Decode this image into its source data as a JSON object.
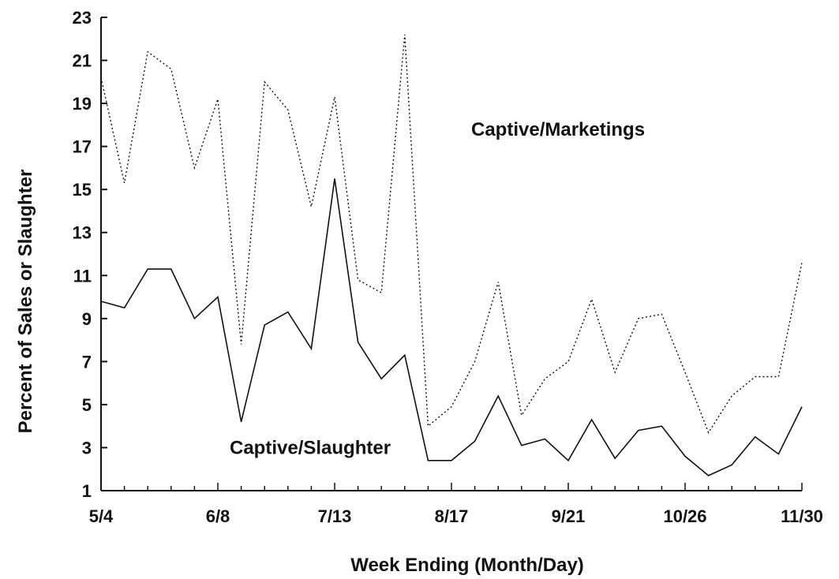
{
  "chart_data": {
    "type": "line",
    "title": "",
    "xlabel": "Week Ending (Month/Day)",
    "ylabel": "Percent of Sales or Slaughter",
    "ylim": [
      1,
      23
    ],
    "yticks": [
      "1",
      "3",
      "5",
      "7",
      "9",
      "11",
      "13",
      "15",
      "17",
      "19",
      "21",
      "23"
    ],
    "xticks": [
      "5/4",
      "6/8",
      "7/13",
      "8/17",
      "9/21",
      "10/26",
      "11/30"
    ],
    "grid": false,
    "x": [
      "5/4",
      "5/11",
      "5/18",
      "5/25",
      "6/1",
      "6/8",
      "6/15",
      "6/22",
      "6/29",
      "7/6",
      "7/13",
      "7/20",
      "7/27",
      "8/3",
      "8/10",
      "8/17",
      "8/24",
      "8/31",
      "9/7",
      "9/14",
      "9/21",
      "9/28",
      "10/5",
      "10/12",
      "10/19",
      "10/26",
      "11/2",
      "11/9",
      "11/16",
      "11/23",
      "11/30"
    ],
    "series": [
      {
        "name": "Captive/Marketings",
        "style": "dotted",
        "values": [
          20.2,
          15.3,
          21.4,
          20.6,
          16.0,
          19.2,
          7.8,
          20.0,
          18.7,
          14.2,
          19.3,
          10.8,
          10.2,
          22.2,
          4.0,
          4.9,
          7.0,
          10.7,
          4.5,
          6.2,
          7.0,
          9.9,
          6.5,
          9.0,
          9.2,
          6.5,
          3.7,
          5.4,
          6.3,
          6.3,
          11.6
        ]
      },
      {
        "name": "Captive/Slaughter",
        "style": "solid",
        "values": [
          9.8,
          9.5,
          11.3,
          11.3,
          9.0,
          10.0,
          4.2,
          8.7,
          9.3,
          7.6,
          15.5,
          7.9,
          6.2,
          7.3,
          2.4,
          2.4,
          3.3,
          5.4,
          3.1,
          3.4,
          2.4,
          4.3,
          2.5,
          3.8,
          4.0,
          2.6,
          1.7,
          2.2,
          3.5,
          2.7,
          4.9
        ]
      }
    ],
    "series_labels": [
      {
        "text": "Captive/Marketings",
        "at_x": "8/17",
        "at_y": 17.5
      },
      {
        "text": "Captive/Slaughter",
        "at_x": "6/8",
        "at_y": 2.7
      }
    ]
  }
}
